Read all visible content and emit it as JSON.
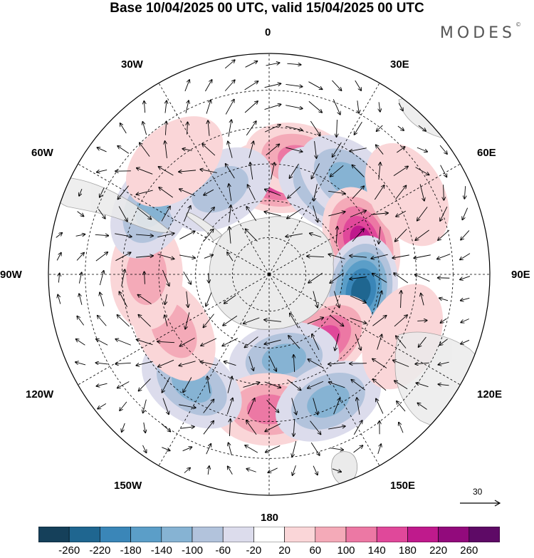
{
  "title": "Base 10/04/2025 00 UTC, valid 15/04/2025 00 UTC",
  "brand": "MODES",
  "brand_mark": "©",
  "longitude_labels": {
    "lon_0": "0",
    "lon_30e": "30E",
    "lon_60e": "60E",
    "lon_90e": "90E",
    "lon_120e": "120E",
    "lon_150e": "150E",
    "lon_180": "180",
    "lon_150w": "150W",
    "lon_120w": "120W",
    "lon_90w": "90W",
    "lon_60w": "60W",
    "lon_30w": "30W"
  },
  "vector_scale": "30",
  "colorbar": {
    "ticks": [
      "-260",
      "-220",
      "-180",
      "-140",
      "-100",
      "-60",
      "-20",
      "20",
      "60",
      "100",
      "140",
      "180",
      "220",
      "260"
    ],
    "colors": [
      "#15405a",
      "#1f6690",
      "#3a86b8",
      "#5b9ec8",
      "#86b3d3",
      "#b2c3dc",
      "#dcdcec",
      "#ffffff",
      "#fad6d8",
      "#f4aab8",
      "#ec78a4",
      "#e0489a",
      "#bf1a8c",
      "#920a7c",
      "#5e0a66"
    ]
  },
  "map_colors": {
    "land": "#ebebeb",
    "coast": "#999999",
    "grid": "#000000"
  },
  "anomalies": [
    {
      "lon": 5,
      "lat": -50,
      "value": 200
    },
    {
      "lon": 15,
      "lat": -42,
      "value": 150
    },
    {
      "lon": 35,
      "lat": -48,
      "value": -150
    },
    {
      "lon": 40,
      "lat": -40,
      "value": -120
    },
    {
      "lon": 70,
      "lat": -50,
      "value": 220
    },
    {
      "lon": 100,
      "lat": -52,
      "value": -260
    },
    {
      "lon": 140,
      "lat": -55,
      "value": 180
    },
    {
      "lon": 170,
      "lat": -55,
      "value": -140
    },
    {
      "lon": 180,
      "lat": -35,
      "value": 140
    },
    {
      "lon": 155,
      "lat": -33,
      "value": -130
    },
    {
      "lon": -145,
      "lat": -35,
      "value": -120
    },
    {
      "lon": -120,
      "lat": -45,
      "value": 80
    },
    {
      "lon": -90,
      "lat": -40,
      "value": 80
    },
    {
      "lon": -60,
      "lat": -35,
      "value": -120
    },
    {
      "lon": -30,
      "lat": -50,
      "value": -110
    },
    {
      "lon": -40,
      "lat": -30,
      "value": 60
    },
    {
      "lon": 60,
      "lat": -25,
      "value": 60
    },
    {
      "lon": 115,
      "lat": -30,
      "value": 60
    }
  ]
}
